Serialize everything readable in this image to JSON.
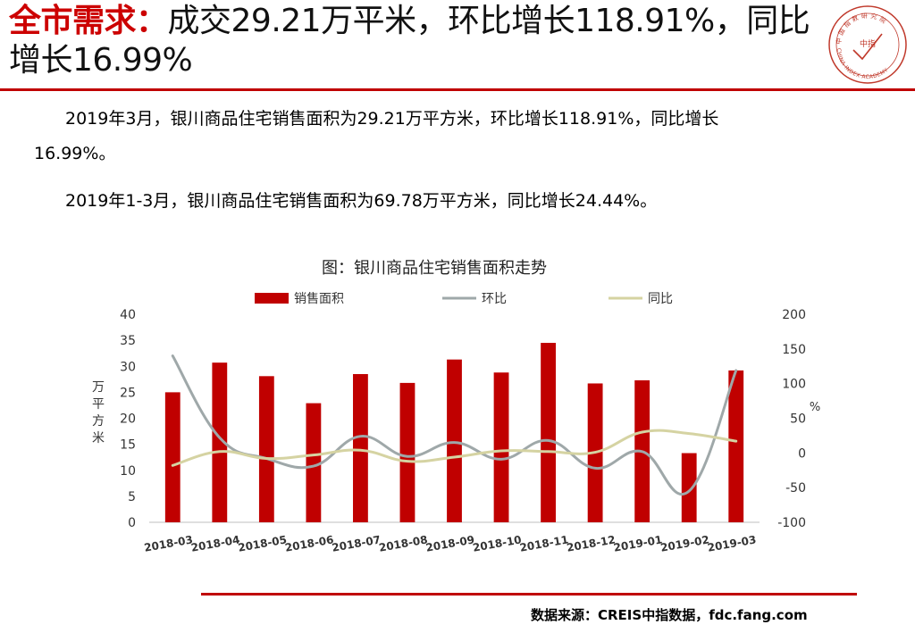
{
  "header": {
    "title_keyword": "全市需求：",
    "title_rest": "成交29.21万平米，环比增长118.91%，同比增长16.99%"
  },
  "logo": {
    "icon": "china-index-academy-seal-icon",
    "chars_top": "中国指数研究院",
    "center": "中指",
    "english": "CHINA INDEX ACADEMY"
  },
  "body": {
    "para1_line1": "2019年3月，银川商品住宅销售面积为29.21万平方米，环比增长118.91%，同比增长",
    "para1_line2": "16.99%。",
    "para2": "2019年1-3月，银川商品住宅销售面积为69.78万平方米，同比增长24.44%。"
  },
  "chart_data": {
    "type": "bar",
    "title": "图：银川商品住宅销售面积走势",
    "categories": [
      "2018-03",
      "2018-04",
      "2018-05",
      "2018-06",
      "2018-07",
      "2018-08",
      "2018-09",
      "2018-10",
      "2018-11",
      "2018-12",
      "2019-01",
      "2019-02",
      "2019-03"
    ],
    "series": [
      {
        "name": "销售面积",
        "type": "bar",
        "axis": "left",
        "color": "#c00000",
        "values": [
          25.0,
          30.7,
          28.1,
          22.9,
          28.5,
          26.8,
          31.3,
          28.8,
          34.5,
          26.7,
          27.3,
          13.3,
          29.2
        ]
      },
      {
        "name": "环比",
        "type": "line",
        "axis": "right",
        "color": "#9fa8a9",
        "values": [
          140,
          22,
          -8,
          -19,
          24,
          -5,
          15,
          -9,
          18,
          -22,
          2,
          -55,
          118.91
        ]
      },
      {
        "name": "同比",
        "type": "line",
        "axis": "right",
        "color": "#d5d3a2",
        "values": [
          -18,
          2,
          -8,
          -3,
          4,
          -12,
          -6,
          3,
          2,
          1,
          30,
          28,
          16.99
        ]
      }
    ],
    "ylabel": "万平方米",
    "ylabel_right": "%",
    "ylim": [
      0,
      40
    ],
    "yticks": [
      0,
      5,
      10,
      15,
      20,
      25,
      30,
      35,
      40
    ],
    "ylim_right": [
      -100,
      200
    ],
    "yticks_right": [
      -100,
      -50,
      0,
      50,
      100,
      150,
      200
    ],
    "grid": false,
    "legend": "top"
  },
  "footer": {
    "source": "数据来源：CREIS中指数据，fdc.fang.com"
  }
}
